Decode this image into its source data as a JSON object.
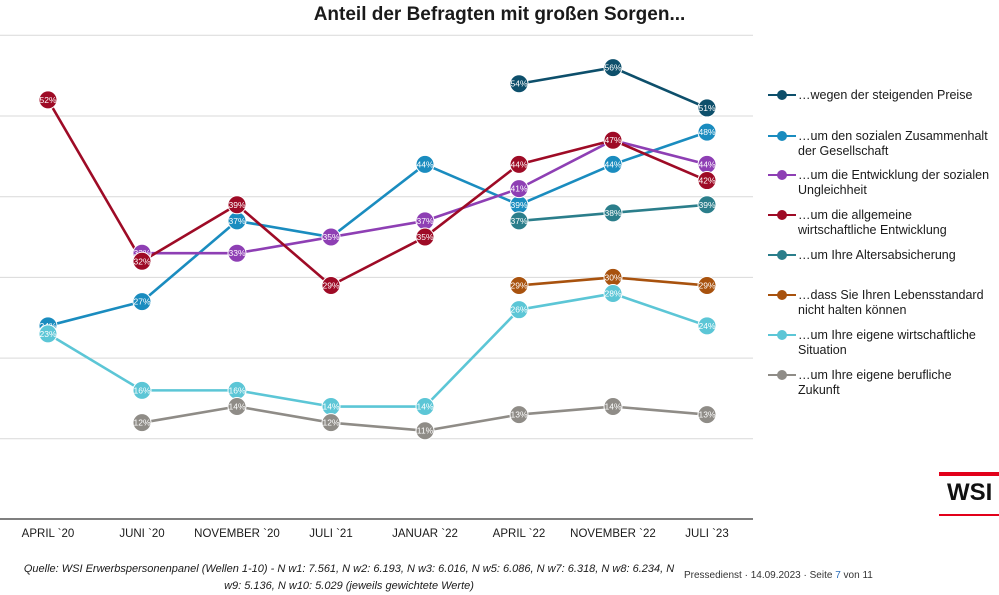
{
  "chart_data": {
    "type": "line",
    "title": "Anteil der Befragten mit großen Sorgen...",
    "categories": [
      "APRIL `20",
      "JUNI `20",
      "NOVEMBER `20",
      "JULI `21",
      "JANUAR `22",
      "APRIL `22",
      "NOVEMBER `22",
      "JULI `23"
    ],
    "ylim": [
      0,
      60
    ],
    "grid": true,
    "legend_position": "right",
    "value_suffix": "%",
    "series": [
      {
        "name": "…wegen der steigenden Preise",
        "color": "#0d4f6b",
        "values": [
          null,
          null,
          null,
          null,
          null,
          54,
          56,
          51
        ]
      },
      {
        "name": "…um den sozialen Zusammenhalt\nder Gesellschaft",
        "color": "#1a8cbf",
        "values": [
          24,
          27,
          37,
          35,
          44,
          39,
          44,
          48
        ]
      },
      {
        "name": "…um die Entwicklung der sozialen\nUngleichheit",
        "color": "#8e3fb4",
        "values": [
          null,
          33,
          33,
          35,
          37,
          41,
          47,
          44
        ]
      },
      {
        "name": "…um die allgemeine\nwirtschaftliche Entwicklung",
        "color": "#9e0b26",
        "values": [
          52,
          32,
          39,
          29,
          35,
          44,
          47,
          42
        ]
      },
      {
        "name": "…um Ihre Altersabsicherung",
        "color": "#2b7e8b",
        "values": [
          null,
          null,
          null,
          null,
          null,
          37,
          38,
          39
        ]
      },
      {
        "name": "…dass Sie Ihren Lebensstandard\nnicht halten können",
        "color": "#a8520e",
        "values": [
          null,
          null,
          null,
          null,
          null,
          29,
          30,
          29
        ]
      },
      {
        "name": "…um Ihre eigene wirtschaftliche\nSituation",
        "color": "#5cc6d6",
        "values": [
          23,
          16,
          16,
          14,
          14,
          26,
          28,
          24
        ]
      },
      {
        "name": "…um Ihre eigene berufliche\nZukunft",
        "color": "#8f8c87",
        "values": [
          null,
          12,
          14,
          12,
          11,
          13,
          14,
          13
        ]
      }
    ]
  },
  "source_text": "Quelle: WSI Erwerbspersonenpanel (Wellen 1-10) - N w1: 7.561, N w2: 6.193, N w3: 6.016, N w5: 6.086, N w7: 6.318, N w8: 6.234, N w9: 5.136, N w10: 5.029  (jeweils gewichtete Werte)",
  "footer": {
    "prefix": "Pressedienst  ·  14.09.2023  ·  Seite ",
    "page": "7",
    "suffix": " von 11"
  },
  "logo_text": "WSI"
}
